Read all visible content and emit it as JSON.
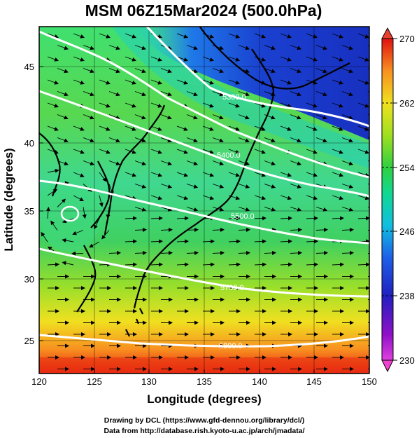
{
  "title": "MSM 06Z15Mar2024 (500.0hPa)",
  "x_axis": {
    "label": "Longitude (degrees)",
    "min": 120,
    "max": 150,
    "ticks": [
      "120",
      "125",
      "130",
      "135",
      "140",
      "145",
      "150"
    ]
  },
  "y_axis": {
    "label": "Latitude  (degrees)",
    "min": 22.5,
    "max": 47.5,
    "ticks": [
      "25",
      "30",
      "35",
      "40",
      "45"
    ]
  },
  "colorbar": {
    "min": 230,
    "max": 270,
    "ticks": [
      "230",
      "238",
      "246",
      "254",
      "262",
      "270"
    ],
    "colors": [
      "#e040e0",
      "#8000c0",
      "#2020c0",
      "#1e60e8",
      "#10c0e0",
      "#10d890",
      "#30d040",
      "#a0e020",
      "#f0e020",
      "#f8a020",
      "#f04010",
      "#e01010"
    ]
  },
  "contours": [
    {
      "label": "5300.0"
    },
    {
      "label": "5400.0"
    },
    {
      "label": "5500.0"
    },
    {
      "label": "5700.0"
    },
    {
      "label": "5800.0"
    }
  ],
  "credits": {
    "line1": "Drawing by DCL (https://www.gfd-dennou.org/library/dcl/)",
    "line2": "Data from http://database.rish.kyoto-u.ac.jp/arch/jmadata/"
  }
}
